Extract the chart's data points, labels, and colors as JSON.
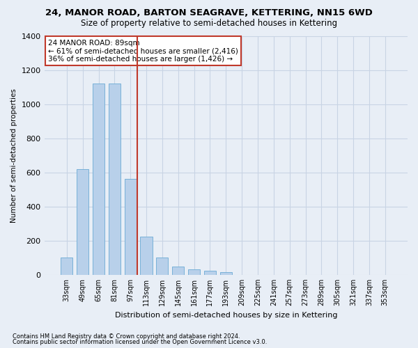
{
  "title": "24, MANOR ROAD, BARTON SEAGRAVE, KETTERING, NN15 6WD",
  "subtitle": "Size of property relative to semi-detached houses in Kettering",
  "xlabel": "Distribution of semi-detached houses by size in Kettering",
  "ylabel": "Number of semi-detached properties",
  "footer_line1": "Contains HM Land Registry data © Crown copyright and database right 2024.",
  "footer_line2": "Contains public sector information licensed under the Open Government Licence v3.0.",
  "annotation_title": "24 MANOR ROAD: 89sqm",
  "annotation_line1": "← 61% of semi-detached houses are smaller (2,416)",
  "annotation_line2": "36% of semi-detached houses are larger (1,426) →",
  "categories": [
    "33sqm",
    "49sqm",
    "65sqm",
    "81sqm",
    "97sqm",
    "113sqm",
    "129sqm",
    "145sqm",
    "161sqm",
    "177sqm",
    "193sqm",
    "209sqm",
    "225sqm",
    "241sqm",
    "257sqm",
    "273sqm",
    "289sqm",
    "305sqm",
    "321sqm",
    "337sqm",
    "353sqm"
  ],
  "values": [
    100,
    620,
    1120,
    1120,
    560,
    225,
    100,
    50,
    30,
    25,
    15,
    0,
    0,
    0,
    0,
    0,
    0,
    0,
    0,
    0,
    0
  ],
  "bar_color": "#b8d0ea",
  "bar_edge_color": "#6aaad4",
  "vline_color": "#c0392b",
  "vline_x": 4.42,
  "annotation_box_edge": "#c0392b",
  "grid_color": "#c8d4e4",
  "background_color": "#e8eef6",
  "ylim": [
    0,
    1400
  ],
  "yticks": [
    0,
    200,
    400,
    600,
    800,
    1000,
    1200,
    1400
  ],
  "title_fontsize": 9.5,
  "subtitle_fontsize": 8.5
}
